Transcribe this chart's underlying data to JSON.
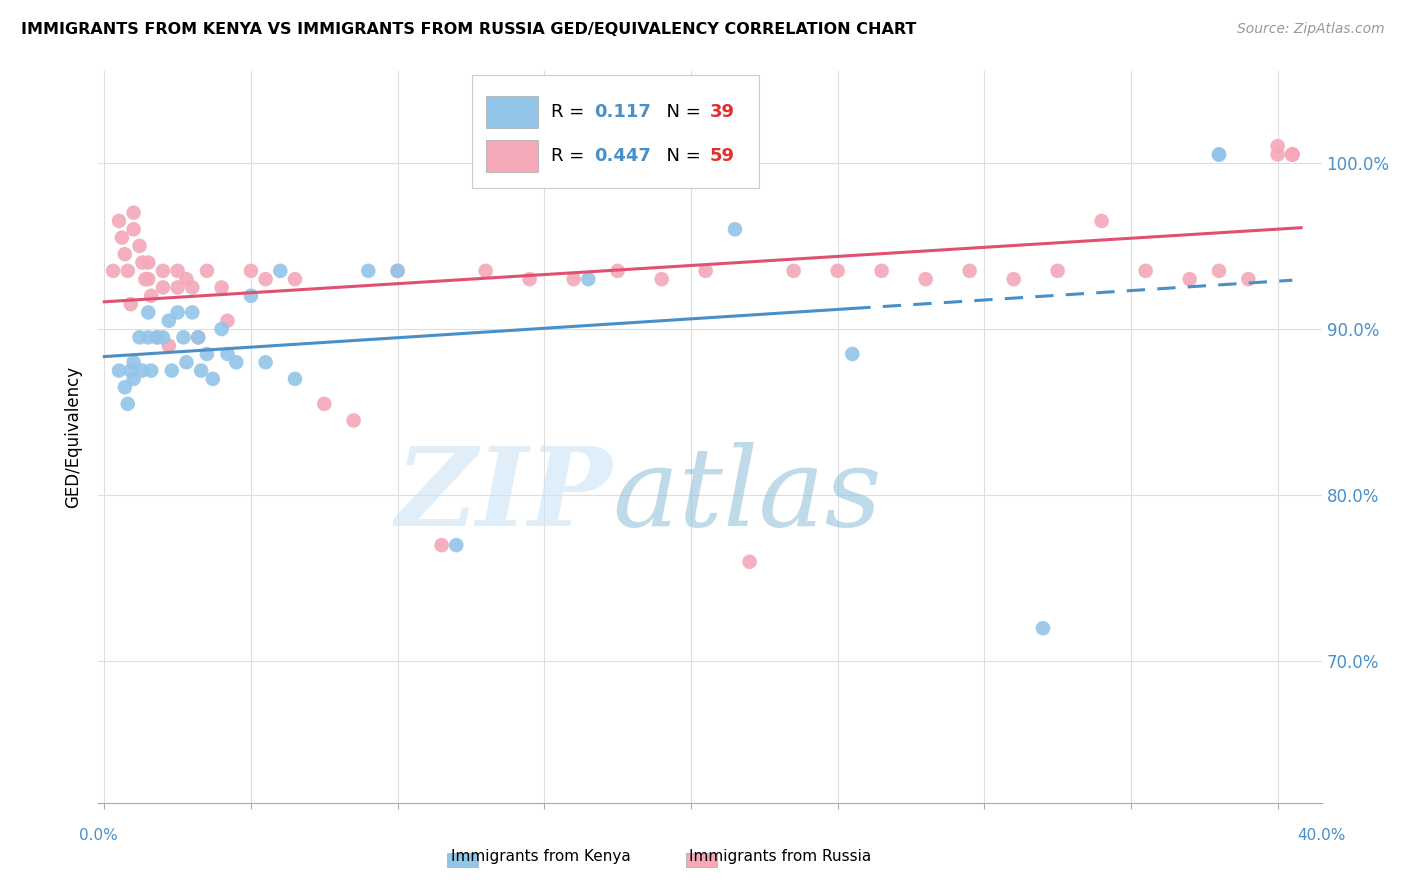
{
  "title": "IMMIGRANTS FROM KENYA VS IMMIGRANTS FROM RUSSIA GED/EQUIVALENCY CORRELATION CHART",
  "source": "Source: ZipAtlas.com",
  "ylabel": "GED/Equivalency",
  "ylabel_tick_vals": [
    0.7,
    0.8,
    0.9,
    1.0
  ],
  "ylabel_tick_labels": [
    "70.0%",
    "80.0%",
    "90.0%",
    "100.0%"
  ],
  "xlim": [
    -0.002,
    0.415
  ],
  "ylim": [
    0.615,
    1.055
  ],
  "R_kenya": 0.117,
  "N_kenya": 39,
  "R_russia": 0.447,
  "N_russia": 59,
  "color_kenya": "#92c5e8",
  "color_russia": "#f4a8b8",
  "line_color_kenya": "#4a90c8",
  "line_color_russia": "#e05070",
  "kenya_line_solid_xmax": 0.255,
  "kenya_line_dash_xmax": 0.405,
  "scatter_kenya_x": [
    0.005,
    0.007,
    0.008,
    0.009,
    0.01,
    0.01,
    0.012,
    0.013,
    0.015,
    0.015,
    0.016,
    0.018,
    0.02,
    0.022,
    0.023,
    0.025,
    0.027,
    0.028,
    0.03,
    0.032,
    0.033,
    0.035,
    0.037,
    0.04,
    0.042,
    0.045,
    0.05,
    0.055,
    0.06,
    0.065,
    0.09,
    0.1,
    0.12,
    0.165,
    0.215,
    0.255,
    0.32,
    0.38,
    0.38
  ],
  "scatter_kenya_y": [
    0.875,
    0.865,
    0.855,
    0.875,
    0.88,
    0.87,
    0.895,
    0.875,
    0.91,
    0.895,
    0.875,
    0.895,
    0.895,
    0.905,
    0.875,
    0.91,
    0.895,
    0.88,
    0.91,
    0.895,
    0.875,
    0.885,
    0.87,
    0.9,
    0.885,
    0.88,
    0.92,
    0.88,
    0.935,
    0.87,
    0.935,
    0.935,
    0.77,
    0.93,
    0.96,
    0.885,
    0.72,
    1.005,
    1.005
  ],
  "scatter_russia_x": [
    0.003,
    0.005,
    0.006,
    0.007,
    0.008,
    0.009,
    0.01,
    0.01,
    0.012,
    0.013,
    0.014,
    0.015,
    0.015,
    0.016,
    0.018,
    0.02,
    0.02,
    0.022,
    0.025,
    0.025,
    0.028,
    0.03,
    0.032,
    0.035,
    0.04,
    0.042,
    0.05,
    0.055,
    0.065,
    0.075,
    0.085,
    0.1,
    0.115,
    0.13,
    0.145,
    0.16,
    0.175,
    0.19,
    0.205,
    0.22,
    0.235,
    0.25,
    0.265,
    0.28,
    0.295,
    0.31,
    0.325,
    0.34,
    0.355,
    0.37,
    0.38,
    0.39,
    0.4,
    0.4,
    0.405,
    0.405,
    0.405,
    0.405,
    0.405
  ],
  "scatter_russia_y": [
    0.935,
    0.965,
    0.955,
    0.945,
    0.935,
    0.915,
    0.97,
    0.96,
    0.95,
    0.94,
    0.93,
    0.94,
    0.93,
    0.92,
    0.895,
    0.935,
    0.925,
    0.89,
    0.935,
    0.925,
    0.93,
    0.925,
    0.895,
    0.935,
    0.925,
    0.905,
    0.935,
    0.93,
    0.93,
    0.855,
    0.845,
    0.935,
    0.77,
    0.935,
    0.93,
    0.93,
    0.935,
    0.93,
    0.935,
    0.76,
    0.935,
    0.935,
    0.935,
    0.93,
    0.935,
    0.93,
    0.935,
    0.965,
    0.935,
    0.93,
    0.935,
    0.93,
    1.005,
    1.01,
    1.005,
    1.005,
    1.005,
    1.005,
    1.005
  ]
}
